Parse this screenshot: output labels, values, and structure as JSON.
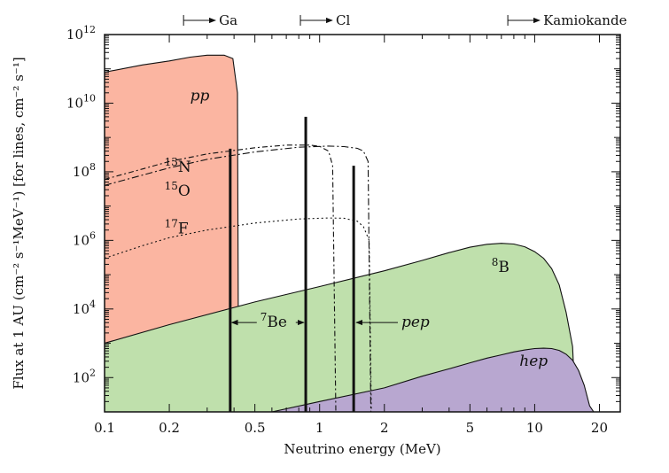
{
  "chart_data": {
    "type": "area",
    "xlabel": "Neutrino energy (MeV)",
    "ylabel": "Flux at 1 AU (cm⁻² s⁻¹MeV⁻¹) [for lines, cm⁻² s⁻¹]",
    "x_scale": "log",
    "y_scale": "log",
    "xlim": [
      0.1,
      25
    ],
    "ylim": [
      10,
      1000000000000
    ],
    "x_ticks": [
      0.1,
      0.2,
      0.5,
      1,
      2,
      5,
      10,
      20
    ],
    "x_tick_labels": [
      "0.1",
      "0.2",
      "0.5",
      "1",
      "2",
      "5",
      "10",
      "20"
    ],
    "y_ticks": [
      100,
      10000,
      1000000,
      100000000,
      10000000000,
      1000000000000
    ],
    "y_tick_labels": [
      {
        "base": "10",
        "exp": "2"
      },
      {
        "base": "10",
        "exp": "4"
      },
      {
        "base": "10",
        "exp": "6"
      },
      {
        "base": "10",
        "exp": "8"
      },
      {
        "base": "10",
        "exp": "10"
      },
      {
        "base": "10",
        "exp": "12"
      }
    ],
    "thresholds": [
      {
        "label": "Ga",
        "x": 0.233
      },
      {
        "label": "Cl",
        "x": 0.814
      },
      {
        "label": "Kamiokande",
        "x": 7.5
      }
    ],
    "areas": [
      {
        "name": "pp",
        "color": "#fbb5a1",
        "points": [
          [
            0.1,
            80000000000
          ],
          [
            0.15,
            130000000000
          ],
          [
            0.2,
            170000000000
          ],
          [
            0.25,
            220000000000
          ],
          [
            0.3,
            250000000000
          ],
          [
            0.36,
            250000000000
          ],
          [
            0.395,
            200000000000
          ],
          [
            0.415,
            20000000000
          ],
          [
            0.42,
            10
          ]
        ]
      },
      {
        "name": "8B",
        "color": "#bfe0ac",
        "points": [
          [
            0.1,
            1000
          ],
          [
            0.2,
            3500
          ],
          [
            0.5,
            16000
          ],
          [
            1,
            45000
          ],
          [
            2,
            130000
          ],
          [
            3,
            260000
          ],
          [
            4,
            440000
          ],
          [
            5,
            630000
          ],
          [
            6,
            770000
          ],
          [
            7,
            820000
          ],
          [
            8,
            780000
          ],
          [
            9,
            650000
          ],
          [
            10,
            470000
          ],
          [
            11,
            300000
          ],
          [
            12,
            150000
          ],
          [
            13,
            50000
          ],
          [
            14,
            8000
          ],
          [
            15,
            800
          ],
          [
            15.5,
            10
          ]
        ]
      },
      {
        "name": "hep",
        "color": "#b8a7d0",
        "points": [
          [
            0.6,
            10
          ],
          [
            1,
            20
          ],
          [
            2,
            50
          ],
          [
            3,
            110
          ],
          [
            4,
            180
          ],
          [
            5,
            270
          ],
          [
            6,
            370
          ],
          [
            7,
            460
          ],
          [
            8,
            560
          ],
          [
            9,
            640
          ],
          [
            10,
            700
          ],
          [
            11,
            720
          ],
          [
            12,
            700
          ],
          [
            13,
            620
          ],
          [
            14,
            480
          ],
          [
            15,
            320
          ],
          [
            16,
            160
          ],
          [
            17,
            60
          ],
          [
            18,
            15
          ],
          [
            18.8,
            10
          ]
        ]
      }
    ],
    "curves": [
      {
        "name": "13N",
        "label": {
          "base": "N",
          "pre": "13"
        },
        "dash": "6,3,2,3",
        "points": [
          [
            0.1,
            60000000
          ],
          [
            0.15,
            120000000
          ],
          [
            0.2,
            200000000
          ],
          [
            0.3,
            330000000
          ],
          [
            0.5,
            500000000
          ],
          [
            0.7,
            600000000
          ],
          [
            0.9,
            600000000
          ],
          [
            1.0,
            550000000
          ],
          [
            1.1,
            400000000
          ],
          [
            1.15,
            150000000
          ],
          [
            1.19,
            10
          ]
        ]
      },
      {
        "name": "15O",
        "label": {
          "base": "O",
          "pre": "15"
        },
        "dash": "8,3,2,3",
        "points": [
          [
            0.1,
            40000000
          ],
          [
            0.15,
            80000000
          ],
          [
            0.2,
            130000000
          ],
          [
            0.3,
            230000000
          ],
          [
            0.5,
            380000000
          ],
          [
            0.8,
            520000000
          ],
          [
            1.1,
            560000000
          ],
          [
            1.3,
            540000000
          ],
          [
            1.5,
            480000000
          ],
          [
            1.6,
            400000000
          ],
          [
            1.68,
            200000000
          ],
          [
            1.73,
            10
          ]
        ]
      },
      {
        "name": "17F",
        "label": {
          "base": "F",
          "pre": "17"
        },
        "dash": "2,3",
        "points": [
          [
            0.1,
            300000
          ],
          [
            0.15,
            700000
          ],
          [
            0.2,
            1200000
          ],
          [
            0.3,
            2000000
          ],
          [
            0.5,
            3200000
          ],
          [
            0.8,
            4200000
          ],
          [
            1.1,
            4500000
          ],
          [
            1.3,
            4400000
          ],
          [
            1.5,
            3600000
          ],
          [
            1.6,
            2500000
          ],
          [
            1.7,
            1000000
          ],
          [
            1.74,
            10
          ]
        ]
      }
    ],
    "lines": [
      {
        "name": "7Be-0.38",
        "x": 0.384,
        "y": 470000000
      },
      {
        "name": "7Be-0.86",
        "x": 0.862,
        "y": 4000000000
      },
      {
        "name": "pep",
        "x": 1.44,
        "y": 150000000
      }
    ],
    "annotations": [
      {
        "name": "pp",
        "text": "pp",
        "italic": true,
        "x": 0.25,
        "y": 12000000000
      },
      {
        "name": "8B",
        "text": "B",
        "pre": "8",
        "italic": false,
        "x": 6.3,
        "y": 120000
      },
      {
        "name": "hep",
        "text": "hep",
        "italic": true,
        "x": 8.5,
        "y": 220
      },
      {
        "name": "7Be",
        "text": "Be",
        "pre": "7",
        "italic": false,
        "x": 0.53,
        "y": 3000
      },
      {
        "name": "pep",
        "text": "pep",
        "italic": true,
        "x": 2.4,
        "y": 3000
      }
    ]
  }
}
